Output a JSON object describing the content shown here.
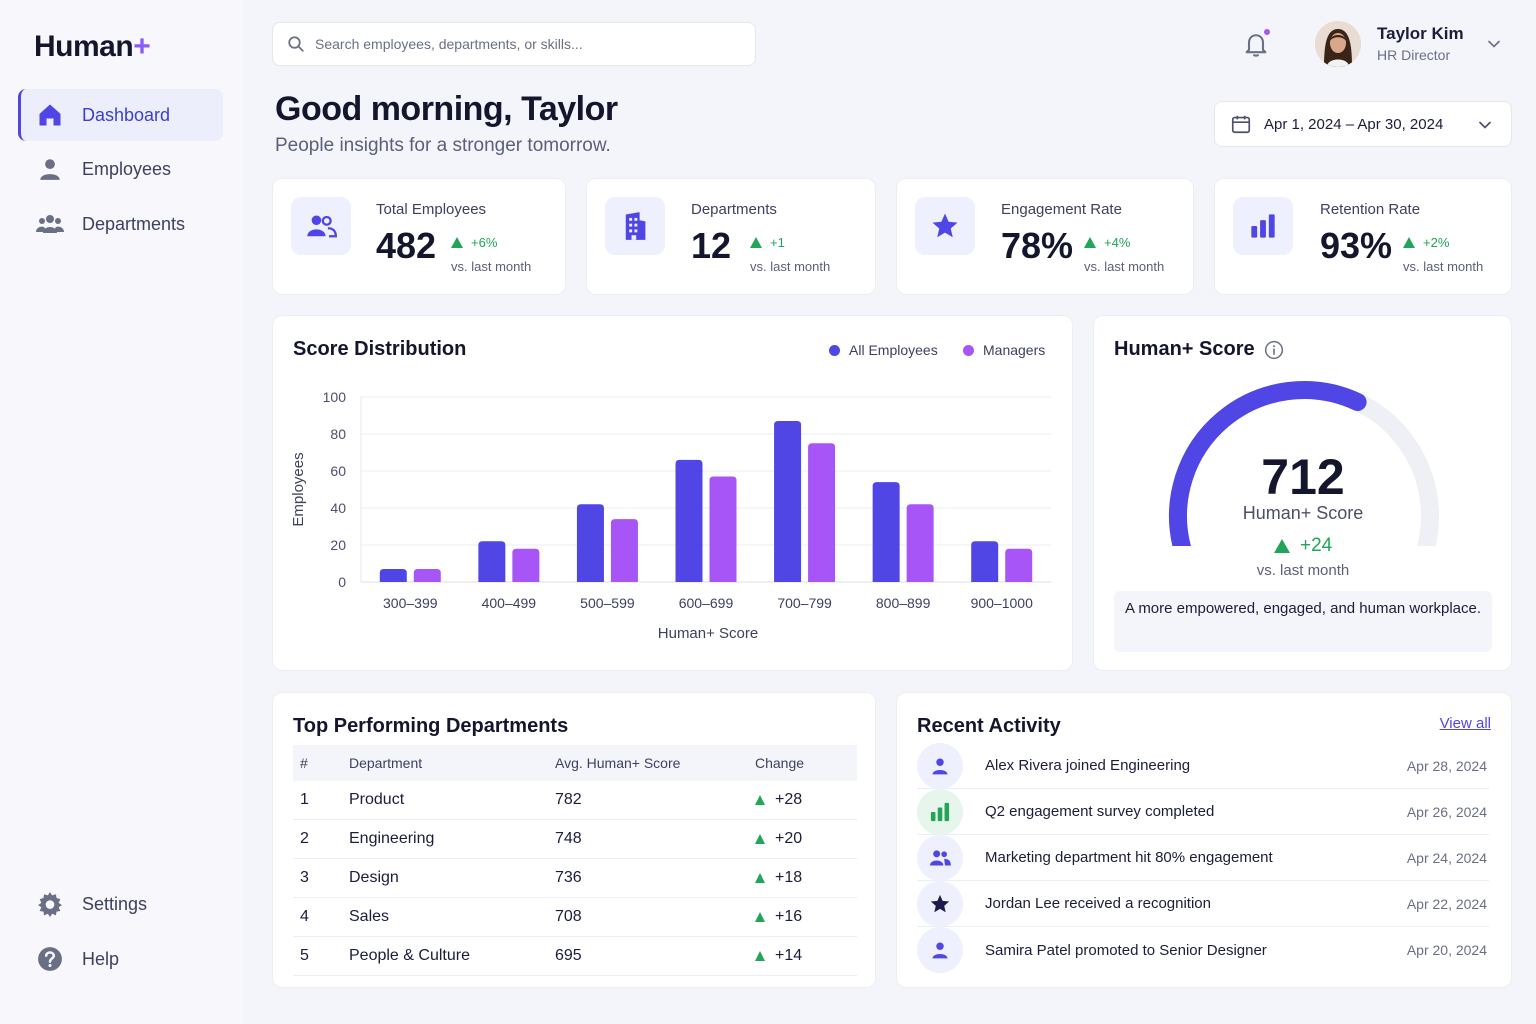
{
  "app": {
    "logo_text": "Human",
    "logo_plus": "+"
  },
  "sidebar": {
    "items": [
      {
        "label": "Dashboard",
        "icon": "home-icon",
        "active": true
      },
      {
        "label": "Employees",
        "icon": "user-icon"
      },
      {
        "label": "Departments",
        "icon": "users-icon"
      }
    ],
    "bottom": [
      {
        "label": "Settings",
        "icon": "gear-icon"
      },
      {
        "label": "Help",
        "icon": "help-icon"
      }
    ]
  },
  "header": {
    "search_placeholder": "Search employees, departments, or skills...",
    "user": {
      "name": "Taylor Kim",
      "role": "HR Director"
    }
  },
  "greeting": {
    "title": "Good morning, Taylor",
    "subtitle": "People insights for a stronger tomorrow."
  },
  "date_range": "Apr 1, 2024 – Apr 30, 2024",
  "kpis": [
    {
      "label": "Total Employees",
      "value": "482",
      "delta": "+6%",
      "vs": "vs. last month",
      "icon": "users-icon"
    },
    {
      "label": "Departments",
      "value": "12",
      "delta": "+1",
      "vs": "vs. last month",
      "icon": "building-icon"
    },
    {
      "label": "Engagement Rate",
      "value": "78%",
      "delta": "+4%",
      "vs": "vs. last month",
      "icon": "star-icon"
    },
    {
      "label": "Retention Rate",
      "value": "93%",
      "delta": "+2%",
      "vs": "vs. last month",
      "icon": "bar-chart-icon"
    }
  ],
  "score_distribution": {
    "title": "Score Distribution",
    "chart_data": {
      "type": "bar",
      "categories": [
        "300–399",
        "400–499",
        "500–599",
        "600–699",
        "700–799",
        "800–899",
        "900–1000"
      ],
      "series": [
        {
          "name": "All Employees",
          "color": "#4f46e5",
          "values": [
            7,
            22,
            42,
            66,
            87,
            54,
            22
          ]
        },
        {
          "name": "Managers",
          "color": "#a855f7",
          "values": [
            7,
            18,
            34,
            57,
            75,
            42,
            18
          ]
        }
      ],
      "xlabel": "Human+ Score",
      "ylabel": "Employees",
      "ylim": [
        0,
        100
      ],
      "yticks": [
        "0",
        "20",
        "40",
        "60",
        "80",
        "100"
      ],
      "grid": true,
      "legend": "top-right"
    }
  },
  "human_score": {
    "title": "Human+ Score",
    "value": "712",
    "label": "Human+ Score",
    "delta": "+24",
    "vs": "vs. last month",
    "note": "A more empowered, engaged, and human workplace.",
    "gauge_fraction": 0.62
  },
  "top_departments": {
    "title": "Top Performing Departments",
    "columns": [
      "#",
      "Department",
      "Avg. Human+ Score",
      "Change"
    ],
    "rows": [
      {
        "rank": "1",
        "name": "Product",
        "score": "782",
        "change": "+28"
      },
      {
        "rank": "2",
        "name": "Engineering",
        "score": "748",
        "change": "+20"
      },
      {
        "rank": "3",
        "name": "Design",
        "score": "736",
        "change": "+18"
      },
      {
        "rank": "4",
        "name": "Sales",
        "score": "708",
        "change": "+16"
      },
      {
        "rank": "5",
        "name": "People & Culture",
        "score": "695",
        "change": "+14"
      }
    ]
  },
  "recent_activity": {
    "title": "Recent Activity",
    "view_all": "View all",
    "items": [
      {
        "text": "Alex Rivera joined Engineering",
        "date": "Apr 28, 2024",
        "icon": "user-icon"
      },
      {
        "text": "Q2 engagement survey completed",
        "date": "Apr 26, 2024",
        "icon": "bar-chart-icon"
      },
      {
        "text": "Marketing department hit 80% engagement",
        "date": "Apr 24, 2024",
        "icon": "users-icon"
      },
      {
        "text": "Jordan Lee received a recognition",
        "date": "Apr 22, 2024",
        "icon": "star-icon"
      },
      {
        "text": "Samira Patel promoted to Senior Designer",
        "date": "Apr 20, 2024",
        "icon": "user-icon"
      }
    ]
  },
  "colors": {
    "primary": "#4f46e5",
    "secondary": "#a855f7",
    "positive": "#22a558"
  }
}
